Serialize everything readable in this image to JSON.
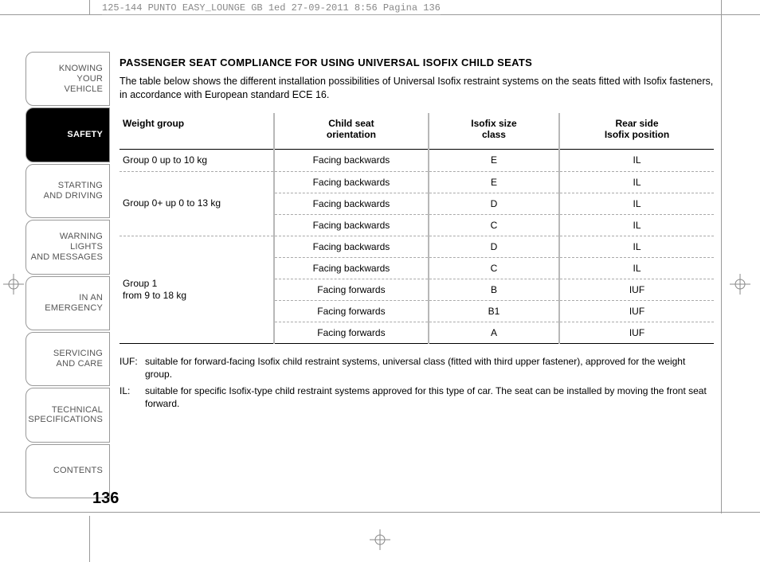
{
  "meta_line": "125-144 PUNTO EASY_LOUNGE GB 1ed  27-09-2011  8:56  Pagina 136",
  "sidebar": {
    "items": [
      {
        "label": "KNOWING\nYOUR\nVEHICLE",
        "active": false
      },
      {
        "label": "SAFETY",
        "active": true
      },
      {
        "label": "STARTING\nAND DRIVING",
        "active": false
      },
      {
        "label": "WARNING LIGHTS\nAND MESSAGES",
        "active": false
      },
      {
        "label": "IN AN\nEMERGENCY",
        "active": false
      },
      {
        "label": "SERVICING\nAND CARE",
        "active": false
      },
      {
        "label": "TECHNICAL\nSPECIFICATIONS",
        "active": false
      },
      {
        "label": "CONTENTS",
        "active": false
      }
    ]
  },
  "title": "PASSENGER SEAT COMPLIANCE FOR USING UNIVERSAL ISOFIX CHILD SEATS",
  "intro": "The table below shows the different installation possibilities of Universal Isofix restraint systems on the seats fitted with Isofix fasteners, in accordance with European standard ECE 16.",
  "table": {
    "headers": [
      "Weight group",
      "Child seat\norientation",
      "Isofix size\nclass",
      "Rear side\nIsofix position"
    ],
    "col_widths_pct": [
      26,
      26,
      22,
      26
    ],
    "groups": [
      {
        "label": "Group 0 up to 10 kg",
        "rows": [
          [
            "Facing backwards",
            "E",
            "IL"
          ]
        ]
      },
      {
        "label": "Group 0+ up 0 to 13 kg",
        "rows": [
          [
            "Facing backwards",
            "E",
            "IL"
          ],
          [
            "Facing backwards",
            "D",
            "IL"
          ],
          [
            "Facing backwards",
            "C",
            "IL"
          ]
        ]
      },
      {
        "label": "Group 1\nfrom 9 to 18 kg",
        "rows": [
          [
            "Facing backwards",
            "D",
            "IL"
          ],
          [
            "Facing backwards",
            "C",
            "IL"
          ],
          [
            "Facing forwards",
            "B",
            "IUF"
          ],
          [
            "Facing forwards",
            "B1",
            "IUF"
          ],
          [
            "Facing forwards",
            "A",
            "IUF"
          ]
        ]
      }
    ]
  },
  "footnotes": [
    {
      "key": "IUF:",
      "text": "suitable for forward-facing Isofix child restraint systems, universal class (fitted with third upper fastener), approved for the weight group."
    },
    {
      "key": "IL:",
      "text": "suitable for specific Isofix-type child restraint systems approved for this type of car. The seat can be installed by moving the front seat forward."
    }
  ],
  "page_number": "136",
  "colors": {
    "text": "#222222",
    "muted": "#888888",
    "rule": "#000000",
    "dash": "#aaaaaa",
    "vsep": "#b8b8b8"
  }
}
